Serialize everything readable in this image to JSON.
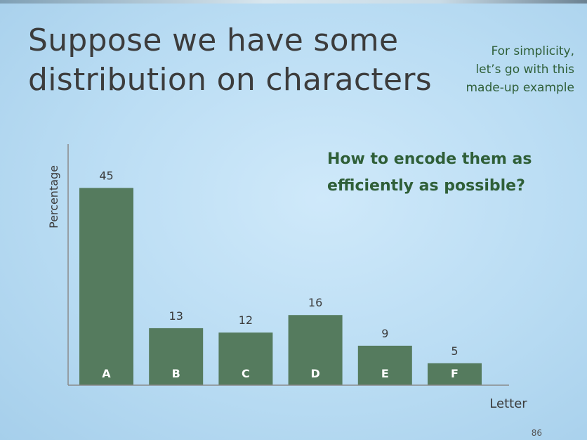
{
  "slide": {
    "title_line1": "Suppose we have some",
    "title_line2": "distribution on characters",
    "note_line1": "For simplicity,",
    "note_line2": "let’s go with this",
    "note_line3": "made-up example",
    "question_line1": "How to encode them as",
    "question_line2": "efficiently as possible?",
    "page_number": "86"
  },
  "colors": {
    "bar": "#557b5e",
    "bar_label": "#ffffff",
    "axis": "#8a8a8a",
    "text": "#3c3c3c"
  },
  "chart_data": {
    "type": "bar",
    "categories": [
      "A",
      "B",
      "C",
      "D",
      "E",
      "F"
    ],
    "values": [
      45,
      13,
      12,
      16,
      9,
      5
    ],
    "xlabel": "Letter",
    "ylabel": "Percentage",
    "ylim": [
      0,
      55
    ],
    "grid": false,
    "category_labels_inside_bars": true,
    "value_labels_above_bars": true
  }
}
